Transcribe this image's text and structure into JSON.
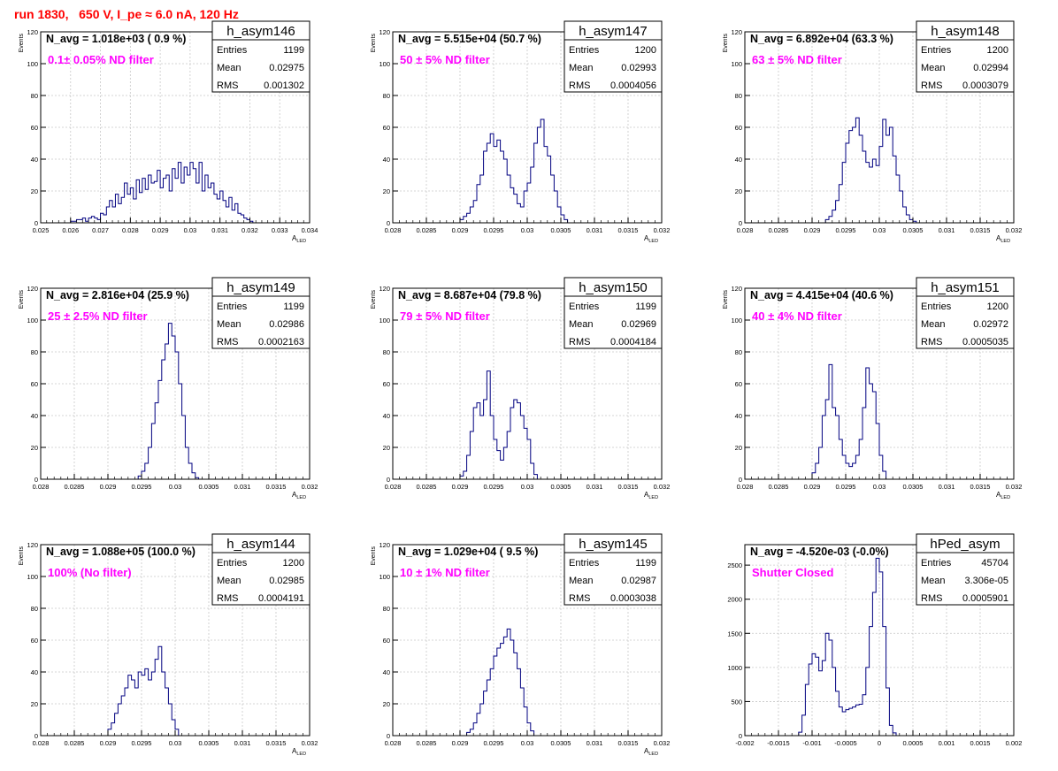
{
  "page_title": "run 1830,   650 V, I_pe ≈ 6.0 nA, 120 Hz",
  "colors": {
    "hist": "#000080",
    "label": "#ff00ff",
    "title": "#ff0000",
    "grid": "#c8c8c8"
  },
  "chart_data": [
    {
      "type": "bar",
      "name": "h_asym146",
      "navg": "N_avg = 1.018e+03 ( 0.9 %)",
      "label": "0.1± 0.05% ND filter",
      "stats": {
        "Entries": "1199",
        "Mean": "0.02975",
        "RMS": "0.001302"
      },
      "xlabel": "A",
      "xlabel_sub": "LED",
      "ylabel": "Events",
      "xlim": [
        0.025,
        0.034
      ],
      "ylim": [
        0,
        120
      ],
      "xticks": [
        0.025,
        0.026,
        0.027,
        0.028,
        0.029,
        0.03,
        0.031,
        0.032,
        0.033,
        0.034
      ],
      "xtick_labels": [
        "0.025",
        "0.026",
        "0.027",
        "0.028",
        "0.029",
        "0.03",
        "0.031",
        "0.032",
        "0.033",
        "0.034"
      ],
      "yticks": [
        0,
        20,
        40,
        60,
        80,
        100,
        120
      ],
      "ytick_labels": [
        "0",
        "20",
        "40",
        "60",
        "80",
        "100",
        "120"
      ],
      "bins_start": 0.026,
      "bin_width": 0.0001,
      "values": [
        1,
        1,
        2,
        2,
        3,
        1,
        3,
        4,
        3,
        2,
        6,
        5,
        10,
        14,
        10,
        18,
        12,
        16,
        25,
        18,
        22,
        15,
        27,
        19,
        28,
        21,
        30,
        25,
        26,
        33,
        22,
        28,
        30,
        20,
        34,
        28,
        38,
        25,
        35,
        30,
        38,
        34,
        25,
        38,
        20,
        30,
        22,
        25,
        18,
        15,
        20,
        14,
        10,
        16,
        8,
        12,
        6,
        5,
        3,
        2,
        1
      ]
    },
    {
      "type": "bar",
      "name": "h_asym147",
      "navg": "N_avg = 5.515e+04 (50.7 %)",
      "label": "50 ± 5% ND filter",
      "stats": {
        "Entries": "1200",
        "Mean": "0.02993",
        "RMS": "0.0004056"
      },
      "xlabel": "A",
      "xlabel_sub": "LED",
      "ylabel": "Events",
      "xlim": [
        0.028,
        0.032
      ],
      "ylim": [
        0,
        120
      ],
      "xticks": [
        0.028,
        0.0285,
        0.029,
        0.0295,
        0.03,
        0.0305,
        0.031,
        0.0315,
        0.032
      ],
      "xtick_labels": [
        "0.028",
        "0.0285",
        "0.029",
        "0.0295",
        "0.03",
        "0.0305",
        "0.031",
        "0.0315",
        "0.032"
      ],
      "yticks": [
        0,
        20,
        40,
        60,
        80,
        100,
        120
      ],
      "ytick_labels": [
        "0",
        "20",
        "40",
        "60",
        "80",
        "100",
        "120"
      ],
      "bins_start": 0.029,
      "bin_width": 5e-05,
      "values": [
        2,
        4,
        6,
        10,
        14,
        24,
        30,
        45,
        50,
        56,
        48,
        52,
        45,
        40,
        30,
        22,
        18,
        12,
        10,
        20,
        25,
        35,
        50,
        60,
        65,
        48,
        42,
        30,
        20,
        10,
        5,
        2
      ]
    },
    {
      "type": "bar",
      "name": "h_asym148",
      "navg": "N_avg = 6.892e+04 (63.3 %)",
      "label": "63 ± 5% ND filter",
      "stats": {
        "Entries": "1200",
        "Mean": "0.02994",
        "RMS": "0.0003079"
      },
      "xlabel": "A",
      "xlabel_sub": "LED",
      "ylabel": "Events",
      "xlim": [
        0.028,
        0.032
      ],
      "ylim": [
        0,
        120
      ],
      "xticks": [
        0.028,
        0.0285,
        0.029,
        0.0295,
        0.03,
        0.0305,
        0.031,
        0.0315,
        0.032
      ],
      "xtick_labels": [
        "0.028",
        "0.0285",
        "0.029",
        "0.0295",
        "0.03",
        "0.0305",
        "0.031",
        "0.0315",
        "0.032"
      ],
      "yticks": [
        0,
        20,
        40,
        60,
        80,
        100,
        120
      ],
      "ytick_labels": [
        "0",
        "20",
        "40",
        "60",
        "80",
        "100",
        "120"
      ],
      "bins_start": 0.0292,
      "bin_width": 5e-05,
      "values": [
        2,
        4,
        8,
        14,
        24,
        38,
        50,
        58,
        60,
        66,
        55,
        45,
        38,
        35,
        40,
        36,
        48,
        65,
        55,
        60,
        42,
        30,
        20,
        10,
        5,
        2,
        1
      ]
    },
    {
      "type": "bar",
      "name": "h_asym149",
      "navg": "N_avg = 2.816e+04 (25.9 %)",
      "label": "25 ± 2.5% ND filter",
      "stats": {
        "Entries": "1199",
        "Mean": "0.02986",
        "RMS": "0.0002163"
      },
      "xlabel": "A",
      "xlabel_sub": "LED",
      "ylabel": "Events",
      "xlim": [
        0.028,
        0.032
      ],
      "ylim": [
        0,
        120
      ],
      "xticks": [
        0.028,
        0.0285,
        0.029,
        0.0295,
        0.03,
        0.0305,
        0.031,
        0.0315,
        0.032
      ],
      "xtick_labels": [
        "0.028",
        "0.0285",
        "0.029",
        "0.0295",
        "0.03",
        "0.0305",
        "0.031",
        "0.0315",
        "0.032"
      ],
      "yticks": [
        0,
        20,
        40,
        60,
        80,
        100,
        120
      ],
      "ytick_labels": [
        "0",
        "20",
        "40",
        "60",
        "80",
        "100",
        "120"
      ],
      "bins_start": 0.02945,
      "bin_width": 5e-05,
      "values": [
        2,
        5,
        10,
        20,
        35,
        48,
        62,
        75,
        85,
        98,
        90,
        80,
        60,
        40,
        20,
        10,
        4,
        1
      ]
    },
    {
      "type": "bar",
      "name": "h_asym150",
      "navg": "N_avg = 8.687e+04 (79.8 %)",
      "label": "79 ± 5% ND filter",
      "stats": {
        "Entries": "1199",
        "Mean": "0.02969",
        "RMS": "0.0004184"
      },
      "xlabel": "A",
      "xlabel_sub": "LED",
      "ylabel": "Events",
      "xlim": [
        0.028,
        0.032
      ],
      "ylim": [
        0,
        120
      ],
      "xticks": [
        0.028,
        0.0285,
        0.029,
        0.0295,
        0.03,
        0.0305,
        0.031,
        0.0315,
        0.032
      ],
      "xtick_labels": [
        "0.028",
        "0.0285",
        "0.029",
        "0.0295",
        "0.03",
        "0.0305",
        "0.031",
        "0.0315",
        "0.032"
      ],
      "yticks": [
        0,
        20,
        40,
        60,
        80,
        100,
        120
      ],
      "ytick_labels": [
        "0",
        "20",
        "40",
        "60",
        "80",
        "100",
        "120"
      ],
      "bins_start": 0.029,
      "bin_width": 5e-05,
      "values": [
        2,
        5,
        15,
        30,
        45,
        48,
        40,
        50,
        68,
        40,
        25,
        18,
        12,
        20,
        30,
        45,
        50,
        48,
        40,
        32,
        25,
        10,
        3
      ]
    },
    {
      "type": "bar",
      "name": "h_asym151",
      "navg": "N_avg = 4.415e+04 (40.6 %)",
      "label": "40 ± 4% ND filter",
      "stats": {
        "Entries": "1200",
        "Mean": "0.02972",
        "RMS": "0.0005035"
      },
      "xlabel": "A",
      "xlabel_sub": "LED",
      "ylabel": "Events",
      "xlim": [
        0.028,
        0.032
      ],
      "ylim": [
        0,
        120
      ],
      "xticks": [
        0.028,
        0.0285,
        0.029,
        0.0295,
        0.03,
        0.0305,
        0.031,
        0.0315,
        0.032
      ],
      "xtick_labels": [
        "0.028",
        "0.0285",
        "0.029",
        "0.0295",
        "0.03",
        "0.0305",
        "0.031",
        "0.0315",
        "0.032"
      ],
      "yticks": [
        0,
        20,
        40,
        60,
        80,
        100,
        120
      ],
      "ytick_labels": [
        "0",
        "20",
        "40",
        "60",
        "80",
        "100",
        "120"
      ],
      "bins_start": 0.029,
      "bin_width": 5e-05,
      "values": [
        4,
        10,
        20,
        40,
        50,
        72,
        45,
        40,
        25,
        15,
        10,
        8,
        10,
        15,
        25,
        45,
        70,
        60,
        55,
        35,
        15,
        5
      ]
    },
    {
      "type": "bar",
      "name": "h_asym144",
      "navg": "N_avg = 1.088e+05 (100.0 %)",
      "label": "100% (No filter)",
      "stats": {
        "Entries": "1200",
        "Mean": "0.02985",
        "RMS": "0.0004191"
      },
      "xlabel": "A",
      "xlabel_sub": "LED",
      "ylabel": "Events",
      "xlim": [
        0.028,
        0.032
      ],
      "ylim": [
        0,
        120
      ],
      "xticks": [
        0.028,
        0.0285,
        0.029,
        0.0295,
        0.03,
        0.0305,
        0.031,
        0.0315,
        0.032
      ],
      "xtick_labels": [
        "0.028",
        "0.0285",
        "0.029",
        "0.0295",
        "0.03",
        "0.0305",
        "0.031",
        "0.0315",
        "0.032"
      ],
      "yticks": [
        0,
        20,
        40,
        60,
        80,
        100,
        120
      ],
      "ytick_labels": [
        "0",
        "20",
        "40",
        "60",
        "80",
        "100",
        "120"
      ],
      "bins_start": 0.029,
      "bin_width": 5e-05,
      "values": [
        4,
        8,
        14,
        20,
        25,
        30,
        38,
        35,
        30,
        40,
        38,
        42,
        35,
        40,
        48,
        56,
        40,
        30,
        20,
        10,
        4
      ]
    },
    {
      "type": "bar",
      "name": "h_asym145",
      "navg": "N_avg = 1.029e+04 ( 9.5 %)",
      "label": "10 ± 1% ND filter",
      "stats": {
        "Entries": "1199",
        "Mean": "0.02987",
        "RMS": "0.0003038"
      },
      "xlabel": "A",
      "xlabel_sub": "LED",
      "ylabel": "Events",
      "xlim": [
        0.028,
        0.032
      ],
      "ylim": [
        0,
        120
      ],
      "xticks": [
        0.028,
        0.0285,
        0.029,
        0.0295,
        0.03,
        0.0305,
        0.031,
        0.0315,
        0.032
      ],
      "xtick_labels": [
        "0.028",
        "0.0285",
        "0.029",
        "0.0295",
        "0.03",
        "0.0305",
        "0.031",
        "0.0315",
        "0.032"
      ],
      "yticks": [
        0,
        20,
        40,
        60,
        80,
        100,
        120
      ],
      "ytick_labels": [
        "0",
        "20",
        "40",
        "60",
        "80",
        "100",
        "120"
      ],
      "bins_start": 0.0291,
      "bin_width": 5e-05,
      "values": [
        2,
        4,
        8,
        14,
        20,
        28,
        35,
        42,
        50,
        55,
        58,
        62,
        67,
        60,
        52,
        42,
        30,
        18,
        8,
        3
      ]
    },
    {
      "type": "bar",
      "name": "hPed_asym",
      "navg": "N_avg = -4.520e-03 (-0.0%)",
      "label": "Shutter Closed",
      "stats": {
        "Entries": "45704",
        "Mean": "3.306e-05",
        "RMS": "0.0005901"
      },
      "xlabel": "",
      "xlabel_sub": "",
      "ylabel": "",
      "xlim": [
        -0.002,
        0.002
      ],
      "ylim": [
        0,
        2800
      ],
      "xticks": [
        -0.002,
        -0.0015,
        -0.001,
        -0.0005,
        0,
        0.0005,
        0.001,
        0.0015,
        0.002
      ],
      "xtick_labels": [
        "-0.002",
        "-0.0015",
        "-0.001",
        "-0.0005",
        "0",
        "0.0005",
        "0.001",
        "0.0015",
        "0.002"
      ],
      "yticks": [
        0,
        500,
        1000,
        1500,
        2000,
        2500
      ],
      "ytick_labels": [
        "0",
        "500",
        "1000",
        "1500",
        "2000",
        "2500"
      ],
      "bins_start": -0.0012,
      "bin_width": 5e-05,
      "values": [
        50,
        300,
        750,
        1050,
        1200,
        1150,
        950,
        1100,
        1500,
        1400,
        1000,
        650,
        420,
        350,
        380,
        400,
        420,
        450,
        460,
        600,
        1000,
        1600,
        2100,
        2600,
        2400,
        1600,
        700,
        150,
        40
      ]
    }
  ]
}
